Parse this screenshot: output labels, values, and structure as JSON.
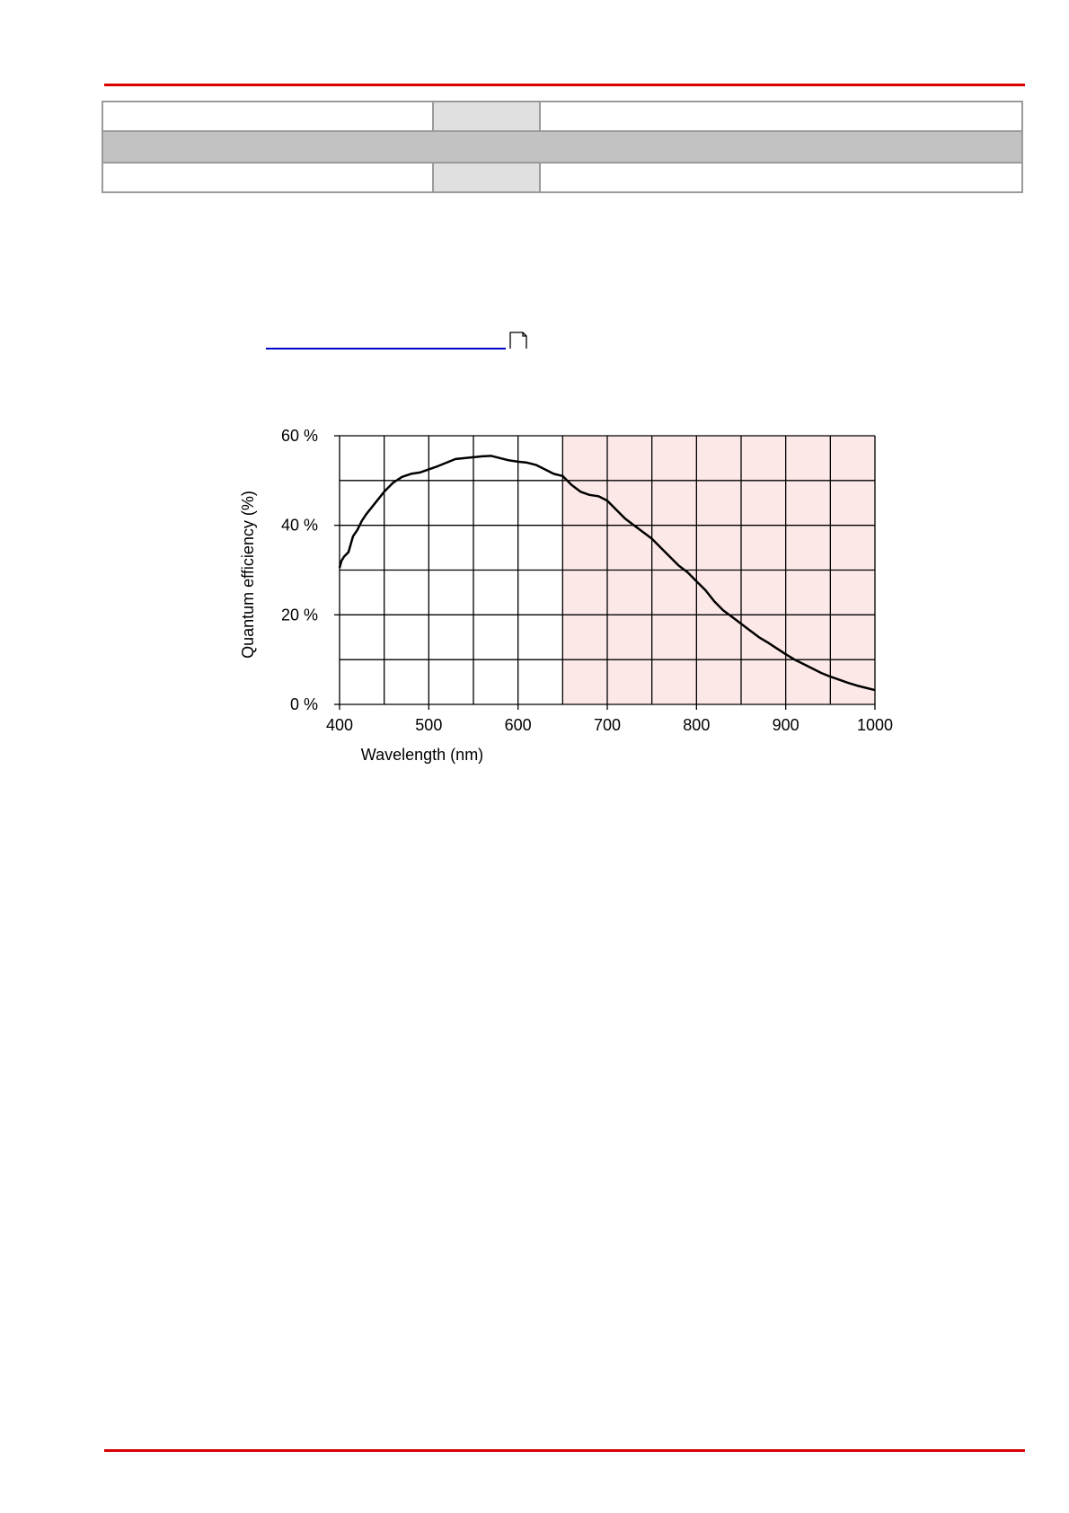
{
  "colors": {
    "rule": "#d90000",
    "header_cell": "#e0e0e0",
    "section_band": "#c2c2c2",
    "table_border": "#9a9a9a",
    "link": "#0000cc",
    "nir_region": "#fde8e8",
    "grid": "#000000",
    "curve": "#000000"
  },
  "icons": {
    "link_target": "document-icon"
  },
  "chart_data": {
    "type": "line",
    "xlabel": "Wavelength (nm)",
    "ylabel": "Quantum efficiency (%)",
    "xlim": [
      400,
      1000
    ],
    "ylim": [
      0,
      60
    ],
    "x_ticks": [
      400,
      500,
      600,
      700,
      800,
      900,
      1000
    ],
    "x_tick_labels": [
      "400",
      "500",
      "600",
      "700",
      "800",
      "900",
      "1000"
    ],
    "y_ticks": [
      0,
      20,
      40,
      60
    ],
    "y_tick_labels": [
      "0 %",
      "20 %",
      "40 %",
      "60 %"
    ],
    "x_gridlines": [
      400,
      450,
      500,
      550,
      600,
      650,
      700,
      750,
      800,
      850,
      900,
      950,
      1000
    ],
    "y_gridlines": [
      0,
      10,
      20,
      30,
      40,
      50,
      60
    ],
    "grid": true,
    "legend": "none",
    "shaded_region": {
      "x_range": [
        650,
        1000
      ],
      "color": "#fde8e8"
    },
    "series": [
      {
        "x": [
          400,
          402,
          405,
          410,
          415,
          420,
          425,
          430,
          440,
          450,
          460,
          470,
          480,
          490,
          500,
          510,
          520,
          530,
          540,
          550,
          560,
          570,
          580,
          590,
          600,
          610,
          620,
          630,
          640,
          650,
          660,
          670,
          680,
          690,
          700,
          710,
          720,
          730,
          740,
          750,
          760,
          770,
          780,
          790,
          800,
          810,
          820,
          830,
          840,
          850,
          860,
          870,
          880,
          890,
          900,
          910,
          920,
          930,
          940,
          950,
          960,
          970,
          980,
          990,
          1000
        ],
        "y": [
          30.5,
          32.0,
          33.0,
          34.0,
          37.5,
          39.0,
          41.0,
          42.5,
          45.0,
          47.5,
          49.5,
          50.8,
          51.5,
          51.8,
          52.5,
          53.2,
          54.0,
          54.8,
          55.0,
          55.2,
          55.4,
          55.5,
          55.0,
          54.5,
          54.2,
          54.0,
          53.5,
          52.5,
          51.5,
          51.0,
          49.0,
          47.5,
          46.8,
          46.5,
          45.5,
          43.5,
          41.5,
          40.0,
          38.5,
          37.0,
          35.0,
          33.0,
          31.0,
          29.5,
          27.5,
          25.5,
          23.0,
          21.0,
          19.5,
          18.0,
          16.5,
          15.0,
          13.8,
          12.5,
          11.2,
          10.0,
          9.0,
          8.0,
          7.0,
          6.2,
          5.5,
          4.8,
          4.2,
          3.7,
          3.2
        ]
      }
    ]
  }
}
